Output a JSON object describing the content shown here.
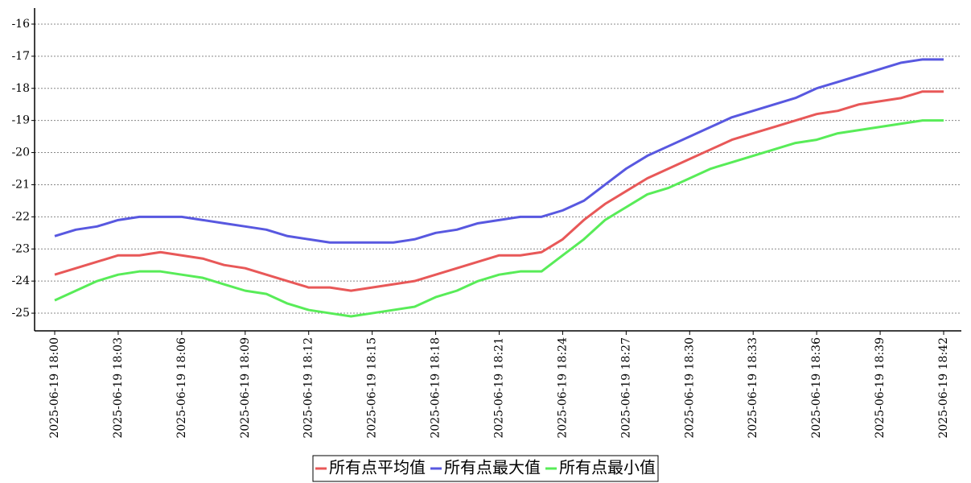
{
  "chart_data": {
    "type": "line",
    "categories": [
      "2025-06-19 18:00",
      null,
      null,
      "2025-06-19 18:03",
      null,
      null,
      "2025-06-19 18:06",
      null,
      null,
      "2025-06-19 18:09",
      null,
      null,
      "2025-06-19 18:12",
      null,
      null,
      "2025-06-19 18:15",
      null,
      null,
      "2025-06-19 18:18",
      null,
      null,
      "2025-06-19 18:21",
      null,
      null,
      "2025-06-19 18:24",
      null,
      null,
      "2025-06-19 18:27",
      null,
      null,
      "2025-06-19 18:30",
      null,
      null,
      "2025-06-19 18:33",
      null,
      null,
      "2025-06-19 18:36",
      null,
      null,
      "2025-06-19 18:39",
      null,
      null,
      "2025-06-19 18:42"
    ],
    "series": [
      {
        "name": "所有点平均值",
        "color": "#e85858",
        "values": [
          -23.8,
          -23.6,
          -23.4,
          -23.2,
          -23.2,
          -23.1,
          -23.2,
          -23.3,
          -23.5,
          -23.6,
          -23.8,
          -24.0,
          -24.2,
          -24.2,
          -24.3,
          -24.2,
          -24.1,
          -24.0,
          -23.8,
          -23.6,
          -23.4,
          -23.2,
          -23.2,
          -23.1,
          -22.7,
          -22.1,
          -21.6,
          -21.2,
          -20.8,
          -20.5,
          -20.2,
          -19.9,
          -19.6,
          -19.4,
          -19.2,
          -19.0,
          -18.8,
          -18.7,
          -18.5,
          -18.4,
          -18.3,
          -18.1,
          -18.1
        ]
      },
      {
        "name": "所有点最大值",
        "color": "#5858e0",
        "values": [
          -22.6,
          -22.4,
          -22.3,
          -22.1,
          -22.0,
          -22.0,
          -22.0,
          -22.1,
          -22.2,
          -22.3,
          -22.4,
          -22.6,
          -22.7,
          -22.8,
          -22.8,
          -22.8,
          -22.8,
          -22.7,
          -22.5,
          -22.4,
          -22.2,
          -22.1,
          -22.0,
          -22.0,
          -21.8,
          -21.5,
          -21.0,
          -20.5,
          -20.1,
          -19.8,
          -19.5,
          -19.2,
          -18.9,
          -18.7,
          -18.5,
          -18.3,
          -18.0,
          -17.8,
          -17.6,
          -17.4,
          -17.2,
          -17.1,
          -17.1
        ]
      },
      {
        "name": "所有点最小值",
        "color": "#58ec58",
        "values": [
          -24.6,
          -24.3,
          -24.0,
          -23.8,
          -23.7,
          -23.7,
          -23.8,
          -23.9,
          -24.1,
          -24.3,
          -24.4,
          -24.7,
          -24.9,
          -25.0,
          -25.1,
          -25.0,
          -24.9,
          -24.8,
          -24.5,
          -24.3,
          -24.0,
          -23.8,
          -23.7,
          -23.7,
          -23.2,
          -22.7,
          -22.1,
          -21.7,
          -21.3,
          -21.1,
          -20.8,
          -20.5,
          -20.3,
          -20.1,
          -19.9,
          -19.7,
          -19.6,
          -19.4,
          -19.3,
          -19.2,
          -19.1,
          -19.0,
          -19.0
        ]
      }
    ],
    "ylim": [
      -25.55,
      -15.5
    ],
    "yticks": [
      -25,
      -24,
      -23,
      -22,
      -21,
      -20,
      -19,
      -18,
      -17,
      -16
    ],
    "grid": true,
    "legend": "bottom"
  }
}
